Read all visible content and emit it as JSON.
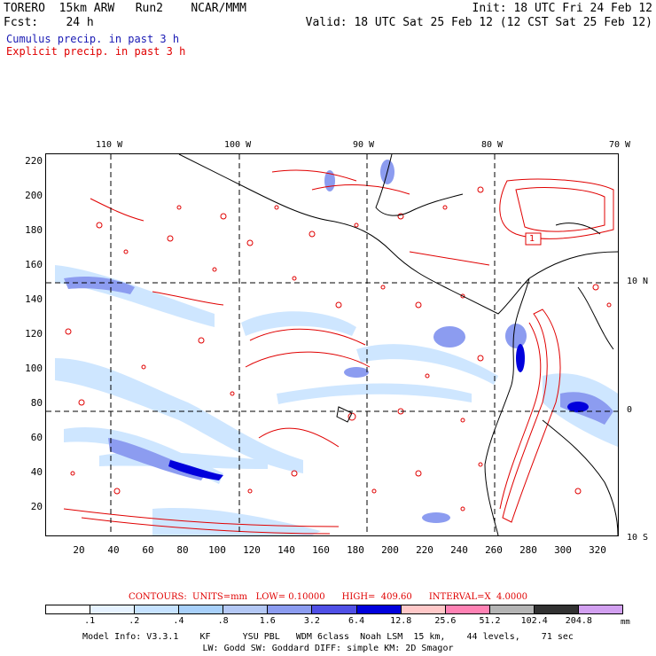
{
  "header": {
    "line1_left": "TORERO  15km ARW   Run2    NCAR/MMM",
    "line1_right": "Init: 18 UTC Fri 24 Feb 12",
    "line2_left": "Fcst:    24 h",
    "line2_right": "Valid: 18 UTC Sat 25 Feb 12 (12 CST Sat 25 Feb 12)"
  },
  "legend": {
    "cumulus": "Cumulus precip. in past 3 h",
    "explicit": "Explicit precip. in past 3 h",
    "cumulus_color": "#1a1ab4",
    "explicit_color": "#e00000"
  },
  "axes": {
    "top_lon": [
      "110 W",
      "100 W",
      "90 W",
      "80 W",
      "70 W"
    ],
    "right_lat": [
      "10 N",
      "0",
      "10 S"
    ],
    "y_ticks": [
      "220",
      "200",
      "180",
      "160",
      "140",
      "120",
      "100",
      "80",
      "60",
      "40",
      "20"
    ],
    "x_ticks": [
      "20",
      "40",
      "60",
      "80",
      "100",
      "120",
      "140",
      "160",
      "180",
      "200",
      "220",
      "240",
      "260",
      "280",
      "300",
      "320"
    ]
  },
  "map": {
    "marker_label": "1",
    "ocean_color": "#ffffff",
    "contour_color": "#e00000",
    "coast_color": "#000000"
  },
  "colorbar": {
    "contour_info": "CONTOURS:  UNITS=mm   LOW= 0.10000      HIGH=  409.60      INTERVAL=X  4.0000",
    "labels": [
      ".1",
      ".2",
      ".4",
      ".8",
      "1.6",
      "3.2",
      "6.4",
      "12.8",
      "25.6",
      "51.2",
      "102.4",
      "204.8"
    ],
    "units": "mm",
    "colors": [
      "#ffffff",
      "#e6f2ff",
      "#c6e2ff",
      "#a8d0fa",
      "#b4c8f5",
      "#8c9cf0",
      "#5050e6",
      "#0000dc",
      "#ffc8c8",
      "#ff82b4",
      "#b4b4b4",
      "#323232",
      "#d2a0f0"
    ]
  },
  "footer": {
    "line1": "Model Info: V3.3.1    KF      YSU PBL   WDM 6class  Noah LSM  15 km,    44 levels,    71 sec",
    "line2": "LW: Godd SW: Goddard DIFF: simple KM: 2D Smagor"
  }
}
